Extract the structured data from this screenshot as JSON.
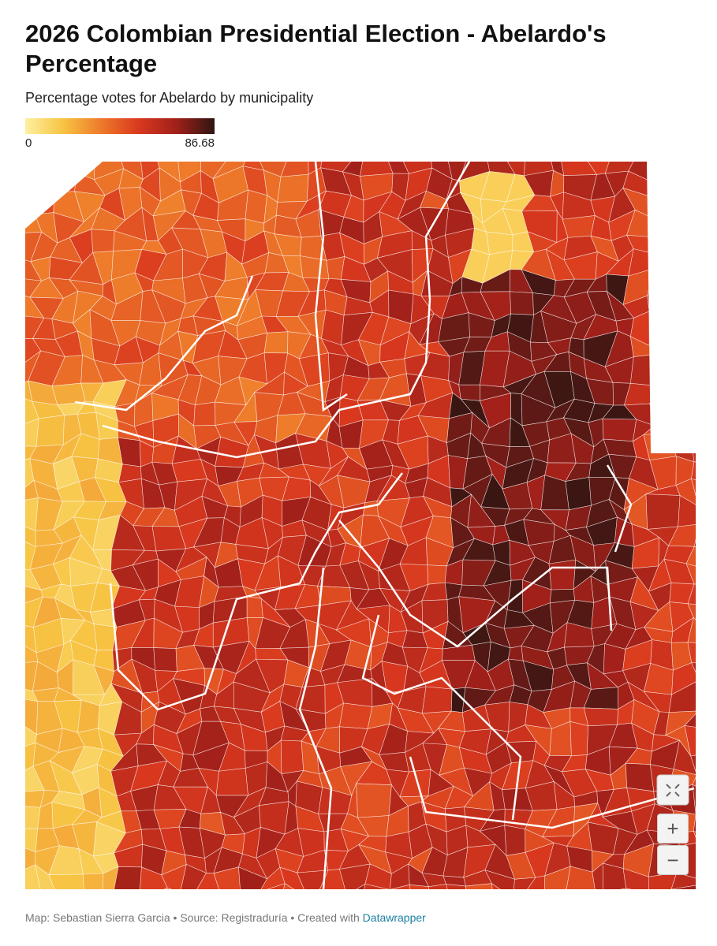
{
  "header": {
    "title": "2026 Colombian Presidential Election - Abelardo's Percentage",
    "subtitle": "Percentage votes for Abelardo by municipality"
  },
  "legend": {
    "range": [
      0,
      86.68
    ],
    "ticks": [
      0,
      86.68
    ],
    "colors": [
      "#fdf0a0",
      "#f7c443",
      "#ee7a2a",
      "#d9381e",
      "#a0201a",
      "#2e1512"
    ]
  },
  "controls": {
    "zoom_in": "+",
    "zoom_out": "−"
  },
  "footer": {
    "credit": "Map: Sebastian Sierra Garcia • Source: Registraduría • Created with",
    "link": "Datawrapper"
  }
}
